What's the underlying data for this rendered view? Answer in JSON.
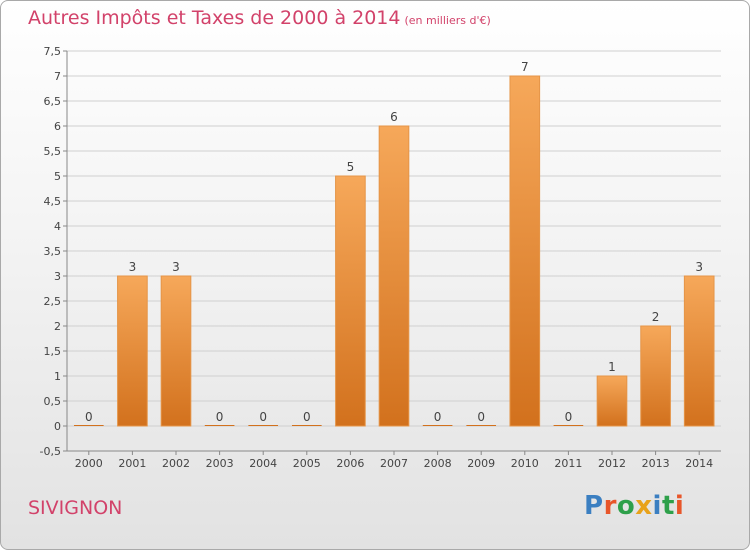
{
  "title": "Autres Impôts et Taxes de 2000 à 2014",
  "title_unit": "(en milliers d'€)",
  "commune": "SIVIGNON",
  "logo": {
    "text": "Proxiti",
    "letters": [
      {
        "ch": "P",
        "color": "#3b7fc1"
      },
      {
        "ch": "r",
        "color": "#e8562a"
      },
      {
        "ch": "o",
        "color": "#2ea04a"
      },
      {
        "ch": "x",
        "color": "#e8a21a"
      },
      {
        "ch": "i",
        "color": "#3b7fc1"
      },
      {
        "ch": "t",
        "color": "#2ea04a"
      },
      {
        "ch": "i",
        "color": "#e8562a"
      }
    ]
  },
  "colors": {
    "bar_light": "#f6a85a",
    "bar_dark": "#d2711d",
    "title": "#d2426a",
    "grid": "#d0d0d0",
    "axis": "#888888",
    "text": "#444444"
  },
  "chart_data": {
    "type": "bar",
    "categories": [
      "2000",
      "2001",
      "2002",
      "2003",
      "2004",
      "2005",
      "2006",
      "2007",
      "2008",
      "2009",
      "2010",
      "2011",
      "2012",
      "2013",
      "2014"
    ],
    "values": [
      0,
      3,
      3,
      0,
      0,
      0,
      5,
      6,
      0,
      0,
      7,
      0,
      1,
      2,
      3
    ],
    "data_labels": [
      "0",
      "3",
      "3",
      "0",
      "0",
      "0",
      "5",
      "6",
      "0",
      "0",
      "7",
      "0",
      "1",
      "2",
      "3"
    ],
    "ylim": [
      -0.5,
      7.5
    ],
    "y_ticks": [
      "-0,5",
      "0",
      "0,5",
      "1",
      "1,5",
      "2",
      "2,5",
      "3",
      "3,5",
      "4",
      "4,5",
      "5",
      "5,5",
      "6",
      "6,5",
      "7",
      "7,5"
    ],
    "y_tick_values": [
      -0.5,
      0,
      0.5,
      1,
      1.5,
      2,
      2.5,
      3,
      3.5,
      4,
      4.5,
      5,
      5.5,
      6,
      6.5,
      7,
      7.5
    ],
    "grid": true,
    "xlabel": "",
    "ylabel": ""
  }
}
